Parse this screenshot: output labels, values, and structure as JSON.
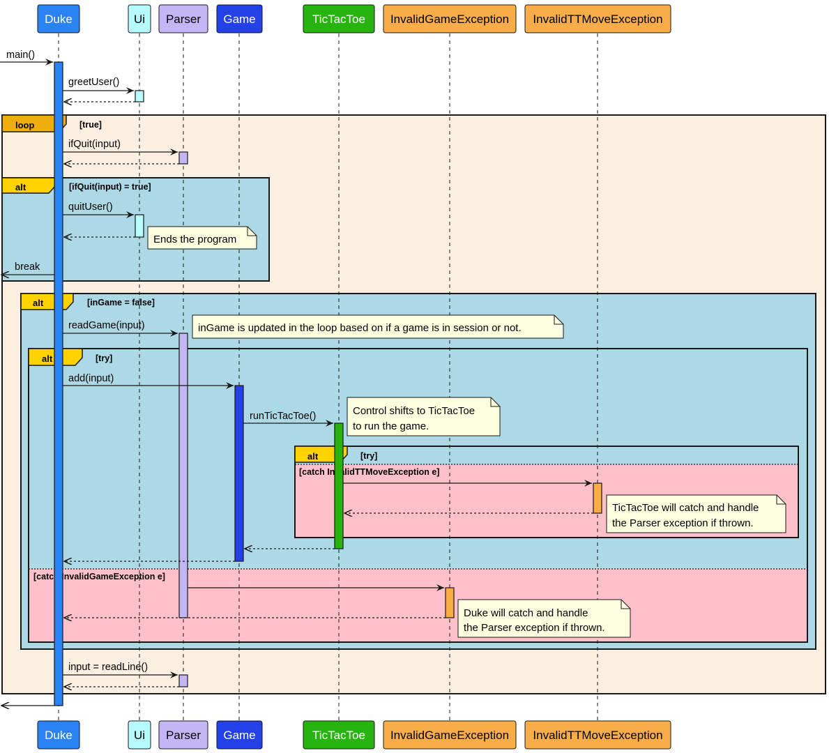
{
  "participants": [
    {
      "id": "duke",
      "label": "Duke",
      "fill": "#2b82f2",
      "text": "#ffffff"
    },
    {
      "id": "ui",
      "label": "Ui",
      "fill": "#b8fbff",
      "text": "#000000"
    },
    {
      "id": "parser",
      "label": "Parser",
      "fill": "#c4b5f5",
      "text": "#000000"
    },
    {
      "id": "game",
      "label": "Game",
      "fill": "#2341e6",
      "text": "#ffffff"
    },
    {
      "id": "tictactoe",
      "label": "TicTacToe",
      "fill": "#27b40e",
      "text": "#ffffff"
    },
    {
      "id": "invalidgame",
      "label": "InvalidGameException",
      "fill": "#f8ad48",
      "text": "#000000"
    },
    {
      "id": "invalidttmove",
      "label": "InvalidTTMoveException",
      "fill": "#f8ad48",
      "text": "#000000"
    }
  ],
  "messages": {
    "main": "main()",
    "greet": "greetUser()",
    "ifquit": "ifQuit(input)",
    "quituser": "quitUser()",
    "break": "break",
    "readgame": "readGame(input)",
    "add": "add(input)",
    "runttt": "runTicTacToe()",
    "readline": "input = readLine()"
  },
  "frames": {
    "loop": {
      "label": "loop",
      "guard": "[true]"
    },
    "alt_quit": {
      "label": "alt",
      "guard": "[ifQuit(input) = true]"
    },
    "alt_ingame": {
      "label": "alt",
      "guard": "[inGame = false]"
    },
    "alt_try_outer": {
      "label": "alt",
      "guard": "[try]",
      "else_guard": "[catch InvalidGameException e]"
    },
    "alt_try_inner": {
      "label": "alt",
      "guard": "[try]",
      "else_guard": "[catch InvalidTTMoveException e]"
    }
  },
  "notes": {
    "ends": "Ends the program",
    "ingame": "inGame is updated in the loop based on if a game is in session or not.",
    "control_1": "Control shifts to TicTacToe",
    "control_2": "to run the game.",
    "ttt_catch_1": "TicTacToe will catch and handle",
    "ttt_catch_2": "the Parser exception if thrown.",
    "duke_catch_1": "Duke will catch and handle",
    "duke_catch_2": "the Parser exception if thrown."
  },
  "colors": {
    "loop_bg": "#faefe0",
    "loop_tab": "#f0ad0e",
    "alt_bg": "#add8e6",
    "alt_tab": "#ffd200",
    "catch_bg": "#ffc0cb",
    "note_bg": "#fefee0"
  }
}
